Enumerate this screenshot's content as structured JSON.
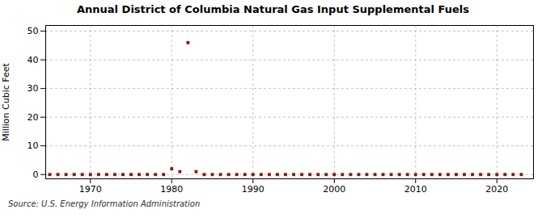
{
  "chart_data": {
    "type": "scatter",
    "title": "Annual District of Columbia Natural Gas Input Supplemental Fuels",
    "ylabel": "Million Cubic Feet",
    "source": "Source: U.S. Energy Information Administration",
    "color": "#8b1a1a",
    "marker": "square",
    "grid": true,
    "xlim": [
      1964.5,
      2024.5
    ],
    "ylim": [
      -1.5,
      52
    ],
    "xticks": [
      1970,
      1980,
      1990,
      2000,
      2010,
      2020
    ],
    "yticks": [
      0,
      10,
      20,
      30,
      40,
      50
    ],
    "x": [
      1965,
      1966,
      1967,
      1968,
      1969,
      1970,
      1971,
      1972,
      1973,
      1974,
      1975,
      1976,
      1977,
      1978,
      1979,
      1980,
      1981,
      1982,
      1983,
      1984,
      1985,
      1986,
      1987,
      1988,
      1989,
      1990,
      1991,
      1992,
      1993,
      1994,
      1995,
      1996,
      1997,
      1998,
      1999,
      2000,
      2001,
      2002,
      2003,
      2004,
      2005,
      2006,
      2007,
      2008,
      2009,
      2010,
      2011,
      2012,
      2013,
      2014,
      2015,
      2016,
      2017,
      2018,
      2019,
      2020,
      2021,
      2022,
      2023
    ],
    "values": [
      0,
      0,
      0,
      0,
      0,
      0,
      0,
      0,
      0,
      0,
      0,
      0,
      0,
      0,
      0,
      2,
      1,
      46,
      1,
      0,
      0,
      0,
      0,
      0,
      0,
      0,
      0,
      0,
      0,
      0,
      0,
      0,
      0,
      0,
      0,
      0,
      0,
      0,
      0,
      0,
      0,
      0,
      0,
      0,
      0,
      0,
      0,
      0,
      0,
      0,
      0,
      0,
      0,
      0,
      0,
      0,
      0,
      0,
      0
    ]
  }
}
